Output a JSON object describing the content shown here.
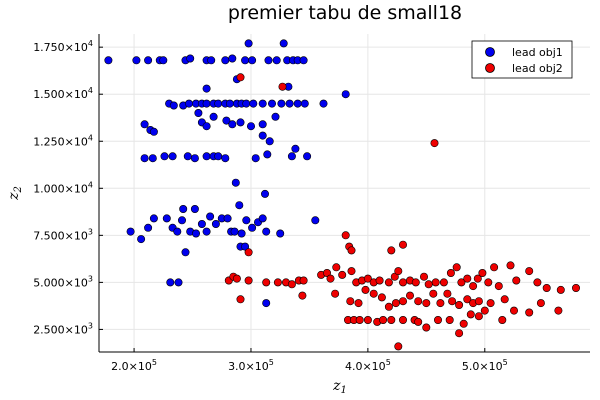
{
  "chart_data": {
    "type": "scatter",
    "title": "premier tabu de small18",
    "xlabel": "z",
    "xlabel_sub": "1",
    "ylabel": "z",
    "ylabel_sub": "2",
    "xlim": [
      170000,
      590000
    ],
    "ylim": [
      1300,
      18200
    ],
    "grid": true,
    "legend_position": "top-right",
    "x_ticks": [
      {
        "value": 200000,
        "mantissa": "2.0×10",
        "exp": "5"
      },
      {
        "value": 300000,
        "mantissa": "3.0×10",
        "exp": "5"
      },
      {
        "value": 400000,
        "mantissa": "4.0×10",
        "exp": "5"
      },
      {
        "value": 500000,
        "mantissa": "5.0×10",
        "exp": "5"
      }
    ],
    "y_ticks": [
      {
        "value": 2500,
        "mantissa": "2.500×10",
        "exp": "3"
      },
      {
        "value": 5000,
        "mantissa": "5.000×10",
        "exp": "3"
      },
      {
        "value": 7500,
        "mantissa": "7.500×10",
        "exp": "3"
      },
      {
        "value": 10000,
        "mantissa": "1.000×10",
        "exp": "4"
      },
      {
        "value": 12500,
        "mantissa": "1.250×10",
        "exp": "4"
      },
      {
        "value": 15000,
        "mantissa": "1.500×10",
        "exp": "4"
      },
      {
        "value": 17500,
        "mantissa": "1.750×10",
        "exp": "4"
      }
    ],
    "series": [
      {
        "name": "lead obj1",
        "color": "#0000ee",
        "points": [
          [
            178000,
            16800
          ],
          [
            202000,
            16800
          ],
          [
            212000,
            16800
          ],
          [
            222000,
            16800
          ],
          [
            225000,
            16800
          ],
          [
            244000,
            16800
          ],
          [
            248000,
            16900
          ],
          [
            262000,
            16800
          ],
          [
            266000,
            16800
          ],
          [
            278000,
            16800
          ],
          [
            284000,
            16900
          ],
          [
            295000,
            16800
          ],
          [
            301000,
            16800
          ],
          [
            315000,
            16800
          ],
          [
            322000,
            16800
          ],
          [
            331000,
            16800
          ],
          [
            336000,
            16800
          ],
          [
            340000,
            16800
          ],
          [
            345000,
            16800
          ],
          [
            298000,
            17700
          ],
          [
            328000,
            17700
          ],
          [
            209000,
            13400
          ],
          [
            214000,
            13100
          ],
          [
            217000,
            13000
          ],
          [
            230000,
            14500
          ],
          [
            234000,
            14400
          ],
          [
            242000,
            14400
          ],
          [
            247000,
            14500
          ],
          [
            253000,
            14500
          ],
          [
            258000,
            14500
          ],
          [
            262000,
            14500
          ],
          [
            268000,
            14500
          ],
          [
            272000,
            14500
          ],
          [
            278000,
            14500
          ],
          [
            282000,
            14500
          ],
          [
            288000,
            14500
          ],
          [
            292000,
            14500
          ],
          [
            296000,
            14500
          ],
          [
            302000,
            14500
          ],
          [
            310000,
            14500
          ],
          [
            318000,
            14500
          ],
          [
            326000,
            14500
          ],
          [
            333000,
            14500
          ],
          [
            340000,
            14500
          ],
          [
            346000,
            14500
          ],
          [
            362000,
            14500
          ],
          [
            381000,
            15000
          ],
          [
            262000,
            15300
          ],
          [
            288000,
            15800
          ],
          [
            332000,
            15400
          ],
          [
            255000,
            14000
          ],
          [
            258000,
            13500
          ],
          [
            262000,
            13300
          ],
          [
            268000,
            13800
          ],
          [
            279000,
            13600
          ],
          [
            284000,
            13400
          ],
          [
            291000,
            13500
          ],
          [
            300000,
            13300
          ],
          [
            310000,
            13400
          ],
          [
            321000,
            13800
          ],
          [
            310000,
            12800
          ],
          [
            316000,
            12500
          ],
          [
            338000,
            12100
          ],
          [
            209000,
            11600
          ],
          [
            216000,
            11600
          ],
          [
            226000,
            11700
          ],
          [
            233000,
            11700
          ],
          [
            246000,
            11700
          ],
          [
            252000,
            11600
          ],
          [
            262000,
            11700
          ],
          [
            268000,
            11700
          ],
          [
            272000,
            11700
          ],
          [
            278000,
            11600
          ],
          [
            304000,
            11600
          ],
          [
            314000,
            11800
          ],
          [
            335000,
            11700
          ],
          [
            348000,
            11700
          ],
          [
            287000,
            10300
          ],
          [
            312000,
            9700
          ],
          [
            290000,
            9100
          ],
          [
            242000,
            8900
          ],
          [
            252000,
            8900
          ],
          [
            197000,
            7700
          ],
          [
            206000,
            7300
          ],
          [
            212000,
            7900
          ],
          [
            217000,
            8400
          ],
          [
            228000,
            8400
          ],
          [
            233000,
            7900
          ],
          [
            237000,
            7700
          ],
          [
            241000,
            8300
          ],
          [
            244000,
            6600
          ],
          [
            248000,
            7700
          ],
          [
            253000,
            7600
          ],
          [
            258000,
            8100
          ],
          [
            262000,
            7700
          ],
          [
            265000,
            8500
          ],
          [
            270000,
            8100
          ],
          [
            275000,
            8400
          ],
          [
            280000,
            8400
          ],
          [
            283000,
            7700
          ],
          [
            286000,
            7700
          ],
          [
            291000,
            6900
          ],
          [
            295000,
            6900
          ],
          [
            292000,
            7600
          ],
          [
            296000,
            8300
          ],
          [
            301000,
            7900
          ],
          [
            306000,
            8200
          ],
          [
            310000,
            8400
          ],
          [
            313000,
            7700
          ],
          [
            325000,
            7600
          ],
          [
            355000,
            8300
          ],
          [
            231000,
            5000
          ],
          [
            238000,
            5000
          ],
          [
            313000,
            3900
          ]
        ]
      },
      {
        "name": "lead obj2",
        "color": "#ee0000",
        "points": [
          [
            291000,
            15900
          ],
          [
            327000,
            15400
          ],
          [
            457000,
            12400
          ],
          [
            381000,
            7500
          ],
          [
            384000,
            6900
          ],
          [
            386000,
            6700
          ],
          [
            420000,
            6700
          ],
          [
            430000,
            7000
          ],
          [
            298000,
            6600
          ],
          [
            281000,
            5100
          ],
          [
            285000,
            5300
          ],
          [
            288000,
            5200
          ],
          [
            298000,
            5100
          ],
          [
            291000,
            4100
          ],
          [
            313000,
            5000
          ],
          [
            323000,
            5000
          ],
          [
            341000,
            5100
          ],
          [
            345000,
            5100
          ],
          [
            360000,
            5400
          ],
          [
            365000,
            5500
          ],
          [
            368000,
            5200
          ],
          [
            373000,
            5800
          ],
          [
            378000,
            5400
          ],
          [
            386000,
            5600
          ],
          [
            390000,
            5000
          ],
          [
            395000,
            5100
          ],
          [
            400000,
            5200
          ],
          [
            405000,
            5000
          ],
          [
            410000,
            5100
          ],
          [
            418000,
            5000
          ],
          [
            423000,
            5300
          ],
          [
            426000,
            5600
          ],
          [
            430000,
            5000
          ],
          [
            436000,
            5100
          ],
          [
            441000,
            5000
          ],
          [
            448000,
            5300
          ],
          [
            452000,
            4900
          ],
          [
            458000,
            5000
          ],
          [
            465000,
            5000
          ],
          [
            471000,
            5500
          ],
          [
            476000,
            5800
          ],
          [
            480000,
            5000
          ],
          [
            485000,
            5200
          ],
          [
            490000,
            4800
          ],
          [
            494000,
            5200
          ],
          [
            498000,
            5500
          ],
          [
            503000,
            5000
          ],
          [
            508000,
            5800
          ],
          [
            512000,
            4800
          ],
          [
            522000,
            5900
          ],
          [
            527000,
            5100
          ],
          [
            538000,
            5600
          ],
          [
            545000,
            5000
          ],
          [
            553000,
            4700
          ],
          [
            565000,
            4600
          ],
          [
            578000,
            4700
          ],
          [
            330000,
            5000
          ],
          [
            335000,
            4900
          ],
          [
            344000,
            4300
          ],
          [
            372000,
            4400
          ],
          [
            385000,
            4000
          ],
          [
            392000,
            3900
          ],
          [
            398000,
            4600
          ],
          [
            405000,
            4400
          ],
          [
            412000,
            4200
          ],
          [
            418000,
            3700
          ],
          [
            424000,
            3900
          ],
          [
            430000,
            4000
          ],
          [
            436000,
            4300
          ],
          [
            443000,
            4000
          ],
          [
            450000,
            3900
          ],
          [
            456000,
            4400
          ],
          [
            462000,
            3900
          ],
          [
            468000,
            4400
          ],
          [
            472000,
            4000
          ],
          [
            478000,
            3800
          ],
          [
            485000,
            4100
          ],
          [
            490000,
            3900
          ],
          [
            495000,
            4000
          ],
          [
            500000,
            3500
          ],
          [
            505000,
            3900
          ],
          [
            517000,
            4100
          ],
          [
            525000,
            3500
          ],
          [
            548000,
            3900
          ],
          [
            563000,
            3500
          ],
          [
            383000,
            3000
          ],
          [
            388000,
            3000
          ],
          [
            393000,
            3000
          ],
          [
            400000,
            3000
          ],
          [
            408000,
            2900
          ],
          [
            413000,
            3000
          ],
          [
            420000,
            3000
          ],
          [
            430000,
            3000
          ],
          [
            440000,
            3000
          ],
          [
            443000,
            2900
          ],
          [
            460000,
            3000
          ],
          [
            470000,
            3000
          ],
          [
            478000,
            2300
          ],
          [
            482000,
            2800
          ],
          [
            488000,
            3300
          ],
          [
            495000,
            3200
          ],
          [
            515000,
            3000
          ],
          [
            538000,
            3400
          ],
          [
            426000,
            1600
          ],
          [
            450000,
            2600
          ]
        ]
      }
    ]
  }
}
